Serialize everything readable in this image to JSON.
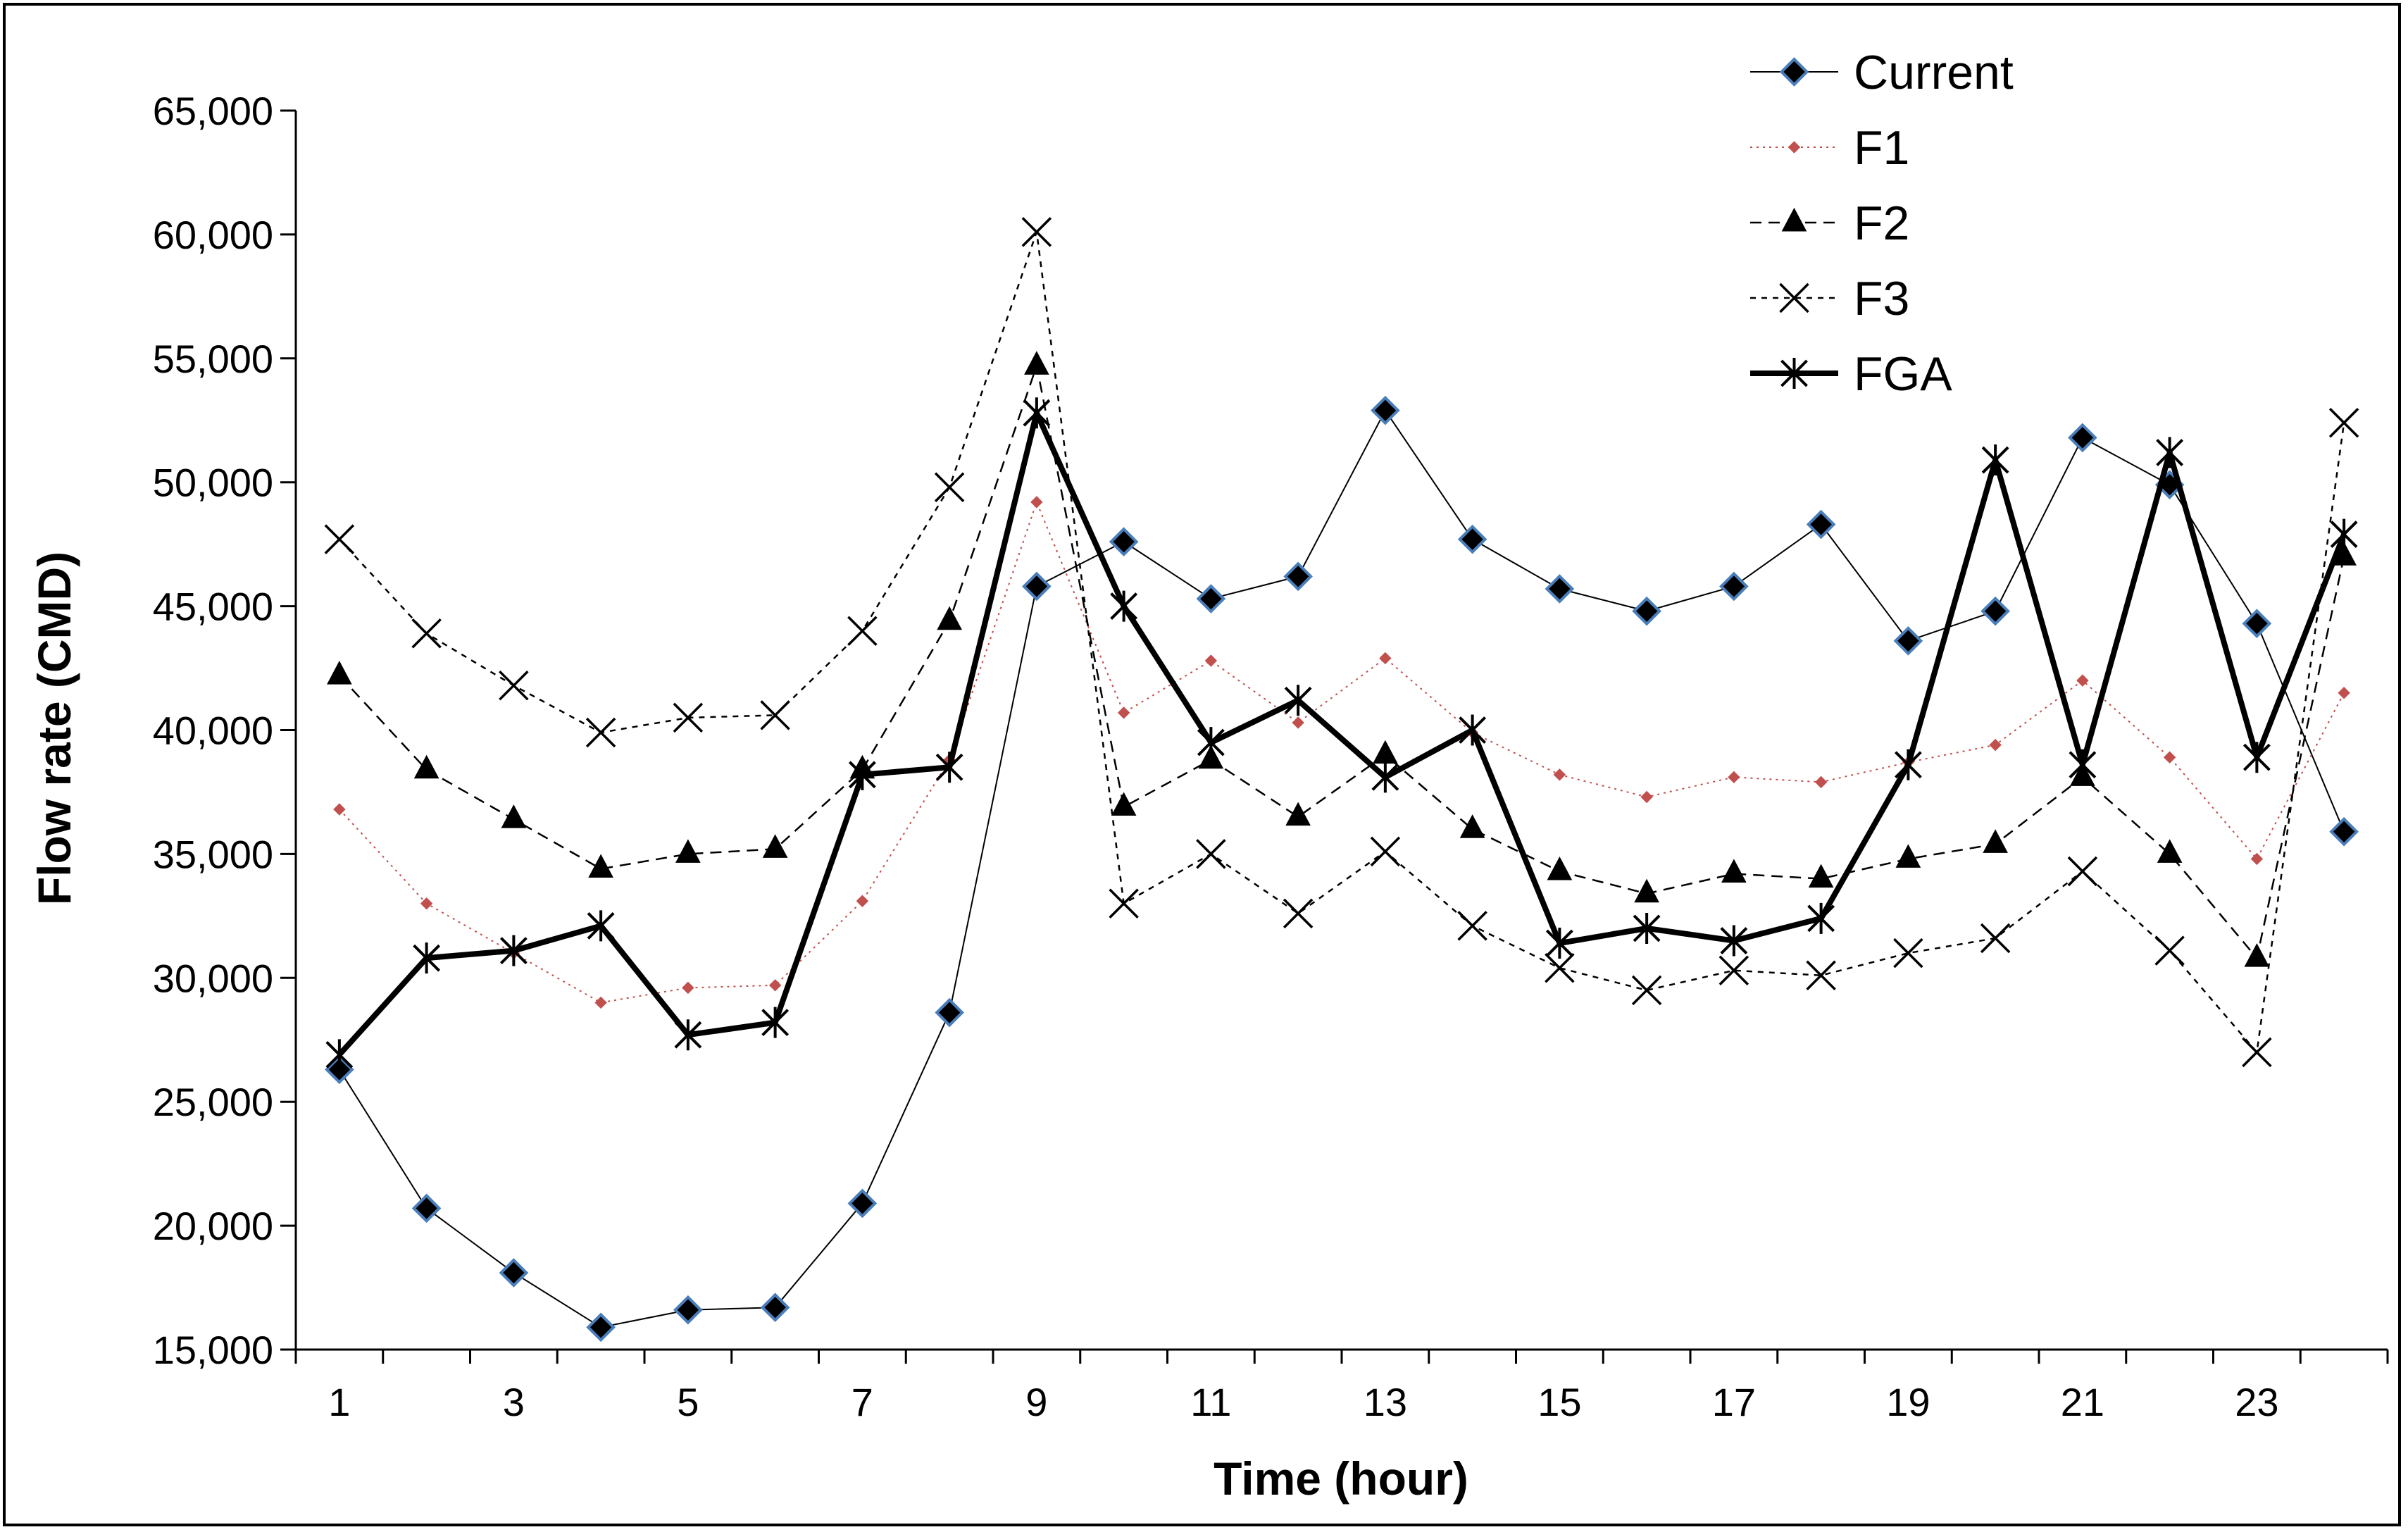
{
  "chart_data": {
    "type": "line",
    "title": "",
    "xlabel": "Time (hour)",
    "ylabel": "Flow rate (CMD)",
    "ylim": [
      15000,
      65000
    ],
    "yticks": [
      "15,000",
      "20,000",
      "25,000",
      "30,000",
      "35,000",
      "40,000",
      "45,000",
      "50,000",
      "55,000",
      "60,000",
      "65,000"
    ],
    "xlim": [
      0.5,
      24.5
    ],
    "xticks": [
      "1",
      "3",
      "5",
      "7",
      "9",
      "11",
      "13",
      "15",
      "17",
      "19",
      "21",
      "23"
    ],
    "x": [
      1,
      2,
      3,
      4,
      5,
      6,
      7,
      8,
      9,
      10,
      11,
      12,
      13,
      14,
      15,
      16,
      17,
      18,
      19,
      20,
      21,
      22,
      23,
      24
    ],
    "grid": false,
    "legend_position": "top-right",
    "series": [
      {
        "name": "Current",
        "marker": "diamond",
        "line_style": "solid-thin",
        "color": "#000000",
        "marker_fill": "#000000",
        "marker_edge": "#4a7ebb",
        "values": [
          26300,
          20700,
          18100,
          15900,
          16600,
          16700,
          20900,
          28600,
          45800,
          47600,
          45300,
          46200,
          52900,
          47700,
          45700,
          44800,
          45800,
          48300,
          43600,
          44800,
          51800,
          49900,
          44300,
          35900
        ]
      },
      {
        "name": "F1",
        "marker": "small-diamond",
        "line_style": "dotted",
        "color": "#c0504d",
        "marker_fill": "#c0504d",
        "marker_edge": "#c0504d",
        "values": [
          36800,
          33000,
          31000,
          29000,
          29600,
          29700,
          33100,
          38800,
          49200,
          40700,
          42800,
          40300,
          42900,
          39900,
          38200,
          37300,
          38100,
          37900,
          38700,
          39400,
          42000,
          38900,
          34800,
          41500
        ]
      },
      {
        "name": "F2",
        "marker": "triangle",
        "line_style": "dashed",
        "color": "#000000",
        "marker_fill": "#000000",
        "marker_edge": "#000000",
        "values": [
          42200,
          38400,
          36400,
          34400,
          35000,
          35200,
          38400,
          44400,
          54700,
          36900,
          38800,
          36500,
          39000,
          36000,
          34300,
          33400,
          34200,
          34000,
          34800,
          35400,
          38100,
          35000,
          30800,
          47000
        ]
      },
      {
        "name": "F3",
        "marker": "x",
        "line_style": "short-dashed",
        "color": "#000000",
        "marker_fill": "none",
        "marker_edge": "#000000",
        "values": [
          47700,
          43900,
          41800,
          39900,
          40500,
          40600,
          44000,
          49800,
          60100,
          33000,
          35000,
          32600,
          35100,
          32100,
          30400,
          29500,
          30300,
          30100,
          31000,
          31600,
          34300,
          31100,
          27000,
          52400
        ]
      },
      {
        "name": "FGA",
        "marker": "star",
        "line_style": "solid-thick",
        "color": "#000000",
        "marker_fill": "none",
        "marker_edge": "#000000",
        "values": [
          26900,
          30800,
          31100,
          32100,
          27700,
          28200,
          38200,
          38500,
          52800,
          45000,
          39500,
          41200,
          38100,
          40000,
          31400,
          32000,
          31500,
          32400,
          38600,
          50900,
          38600,
          51200,
          38900,
          47900
        ]
      }
    ]
  }
}
